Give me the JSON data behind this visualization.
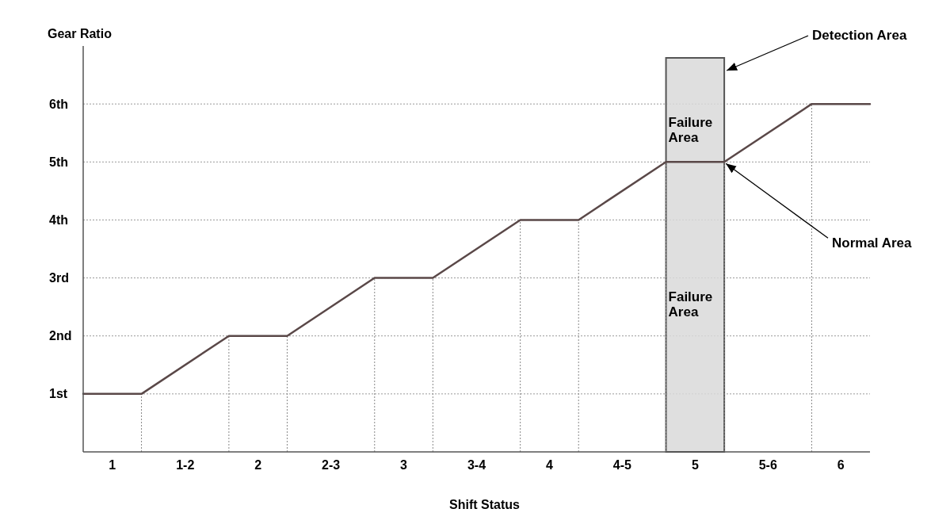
{
  "chart_data": {
    "type": "line",
    "xlabel": "Shift Status",
    "ylabel": "Gear Ratio",
    "x": [
      0.8,
      1.2,
      1.8,
      2.2,
      2.8,
      3.2,
      3.8,
      4.2,
      4.8,
      5.2,
      5.8,
      6.2
    ],
    "series": [
      {
        "color": "#5a4848",
        "values": [
          1,
          1,
          2,
          2,
          3,
          3,
          4,
          4,
          5,
          5,
          6,
          6
        ],
        "errors": [
          null,
          [
            0,
            1
          ],
          [
            0,
            2
          ],
          [
            0,
            2
          ],
          [
            0,
            3
          ],
          [
            0,
            3
          ],
          [
            0,
            4
          ],
          [
            0,
            4
          ],
          [
            0,
            5
          ],
          [
            0,
            5
          ],
          [
            0,
            6
          ],
          null
        ]
      }
    ],
    "xlim": [
      0.8,
      6.2
    ],
    "xticks": [
      1,
      {
        "value": 1.5,
        "label": "1-2"
      },
      2,
      {
        "value": 2.5,
        "label": "2-3"
      },
      3,
      {
        "value": 3.5,
        "label": "3-4"
      },
      4,
      {
        "value": 4.5,
        "label": "4-5"
      },
      5,
      {
        "value": 5.5,
        "label": "5-6"
      },
      6
    ],
    "ylim": [
      0,
      7
    ],
    "yticks": [
      {
        "value": 1,
        "label": "1st"
      },
      {
        "value": 2,
        "label": "2nd"
      },
      {
        "value": 3,
        "label": "3rd"
      },
      {
        "value": 4,
        "label": "4th"
      },
      {
        "value": 5,
        "label": "5th"
      },
      {
        "value": 6,
        "label": "6th"
      }
    ],
    "grid": "y",
    "marker": "none",
    "line_style": "solid",
    "bands": [
      {
        "axis": "x",
        "from": 4.8,
        "to": 5.2,
        "label": "Detection Area",
        "color": "#d9d9d9"
      }
    ],
    "annotations": [
      "Failure Area",
      "Failure Area",
      {
        "text": "Normal Area",
        "x": 5.2,
        "y": 5
      }
    ]
  }
}
